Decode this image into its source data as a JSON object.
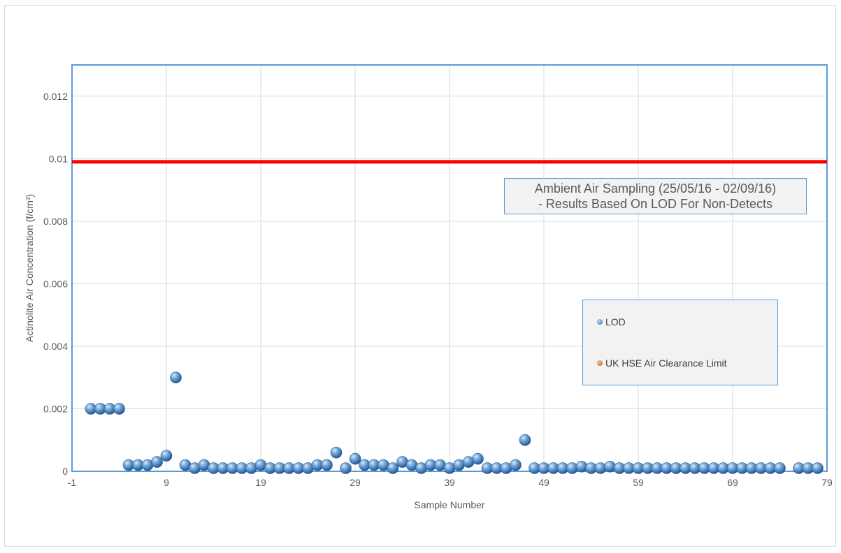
{
  "chart_data": {
    "type": "scatter",
    "title_lines": [
      "Ambient Air Sampling (25/05/16  - 02/09/16)",
      " - Results Based On LOD For Non-Detects"
    ],
    "xlabel": "Sample Number",
    "ylabel": "Actinolite Air Concentration (f/cm³)",
    "xlim": [
      -1,
      79
    ],
    "ylim": [
      0,
      0.013
    ],
    "x_ticks": [
      -1,
      9,
      19,
      29,
      39,
      49,
      59,
      69,
      79
    ],
    "y_ticks": [
      0,
      0.002,
      0.004,
      0.006,
      0.008,
      0.01,
      0.012
    ],
    "x_tick_labels": [
      "-1",
      "9",
      "19",
      "29",
      "39",
      "49",
      "59",
      "69",
      "79"
    ],
    "y_tick_labels": [
      "0",
      "0.002",
      "0.004",
      "0.006",
      "0.008",
      "0.01",
      "0.012"
    ],
    "grid": true,
    "legend_position": "right",
    "series": [
      {
        "name": "LOD",
        "color": "#4a86c5",
        "x": [
          1,
          2,
          3,
          4,
          5,
          6,
          7,
          8,
          9,
          10,
          11,
          12,
          13,
          14,
          15,
          16,
          17,
          18,
          19,
          20,
          21,
          22,
          23,
          24,
          25,
          26,
          27,
          28,
          29,
          30,
          31,
          32,
          33,
          34,
          35,
          36,
          37,
          38,
          39,
          40,
          41,
          42,
          43,
          44,
          45,
          46,
          47,
          48,
          49,
          50,
          51,
          52,
          53,
          54,
          55,
          56,
          57,
          58,
          59,
          60,
          61,
          62,
          63,
          64,
          65,
          66,
          67,
          68,
          69,
          70,
          71,
          72,
          73,
          74,
          76,
          77,
          78
        ],
        "y": [
          0.002,
          0.002,
          0.002,
          0.002,
          0.0002,
          0.0002,
          0.0002,
          0.0003,
          0.0005,
          0.003,
          0.0002,
          0.0001,
          0.0002,
          0.0001,
          0.0001,
          0.0001,
          0.0001,
          0.0001,
          0.0002,
          0.0001,
          0.0001,
          0.0001,
          0.0001,
          0.0001,
          0.0002,
          0.0002,
          0.0006,
          0.0001,
          0.0004,
          0.0002,
          0.0002,
          0.0002,
          0.0001,
          0.0003,
          0.0002,
          0.0001,
          0.0002,
          0.0002,
          0.0001,
          0.0002,
          0.0003,
          0.0004,
          0.0001,
          0.0001,
          0.0001,
          0.0002,
          0.001,
          0.0001,
          0.0001,
          0.0001,
          0.0001,
          0.0001,
          0.00015,
          0.0001,
          0.0001,
          0.00015,
          0.0001,
          0.0001,
          0.0001,
          0.0001,
          0.0001,
          0.0001,
          0.0001,
          0.0001,
          0.0001,
          0.0001,
          0.0001,
          0.0001,
          0.0001,
          0.0001,
          0.0001,
          0.0001,
          0.0001,
          0.0001,
          0.0001,
          0.0001,
          0.0001
        ]
      },
      {
        "name": "UK HSE Air Clearance Limit",
        "color": "#e46c0a",
        "line_color": "#ff0000",
        "y_const": 0.0099
      }
    ]
  }
}
